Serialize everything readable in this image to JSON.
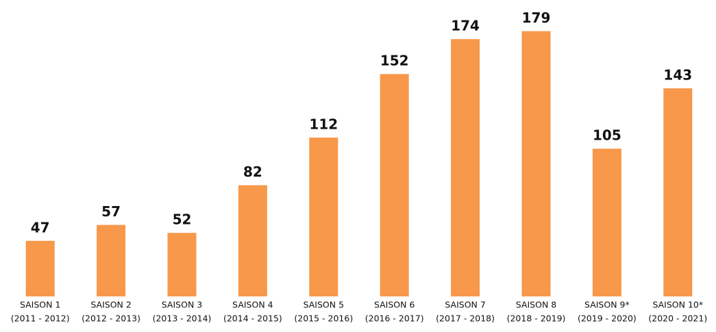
{
  "chart_data": {
    "type": "bar",
    "categories": [
      [
        "SAISON 1",
        "(2011 - 2012)"
      ],
      [
        "SAISON 2",
        "(2012 - 2013)"
      ],
      [
        "SAISON 3",
        "(2013 - 2014)"
      ],
      [
        "SAISON 4",
        "(2014 - 2015)"
      ],
      [
        "SAISON 5",
        "(2015 - 2016)"
      ],
      [
        "SAISON 6",
        "(2016 - 2017)"
      ],
      [
        "SAISON 7",
        "(2017 - 2018)"
      ],
      [
        "SAISON 8",
        "(2018 - 2019)"
      ],
      [
        "SAISON 9*",
        "(2019 - 2020)"
      ],
      [
        "SAISON 10*",
        "(2020 - 2021)"
      ]
    ],
    "values": [
      47,
      57,
      52,
      82,
      112,
      152,
      174,
      179,
      105,
      143
    ],
    "color": "#f7984a",
    "ylim": [
      12,
      190
    ]
  }
}
